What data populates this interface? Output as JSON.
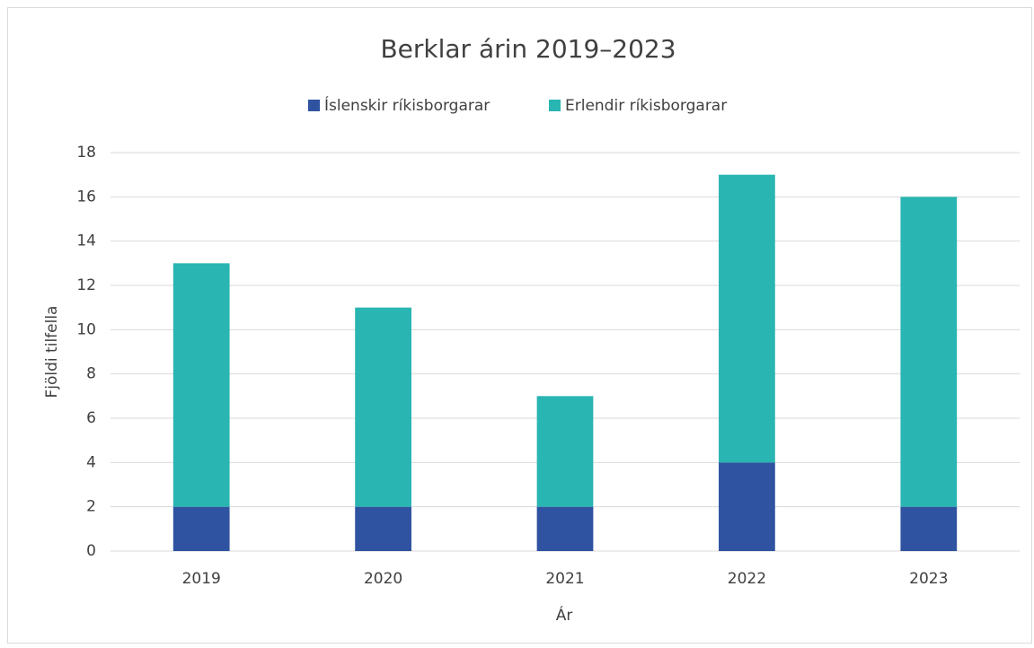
{
  "chart_data": {
    "type": "bar",
    "stacked": true,
    "title": "Berklar árin 2019–2023",
    "x_label": "Ár",
    "y_label": "Fjöldi tilfella",
    "categories": [
      "2019",
      "2020",
      "2021",
      "2022",
      "2023"
    ],
    "series": [
      {
        "name": "Íslenskir ríkisborgarar",
        "color": "#2f53a0",
        "values": [
          2,
          2,
          2,
          4,
          2
        ]
      },
      {
        "name": "Erlendir ríkisborgarar",
        "color": "#29b5b1",
        "values": [
          11,
          9,
          5,
          13,
          14
        ]
      }
    ],
    "ylim": [
      0,
      18
    ],
    "yticks": [
      0,
      2,
      4,
      6,
      8,
      10,
      12,
      14,
      16,
      18
    ],
    "grid": true,
    "legend": "top"
  }
}
